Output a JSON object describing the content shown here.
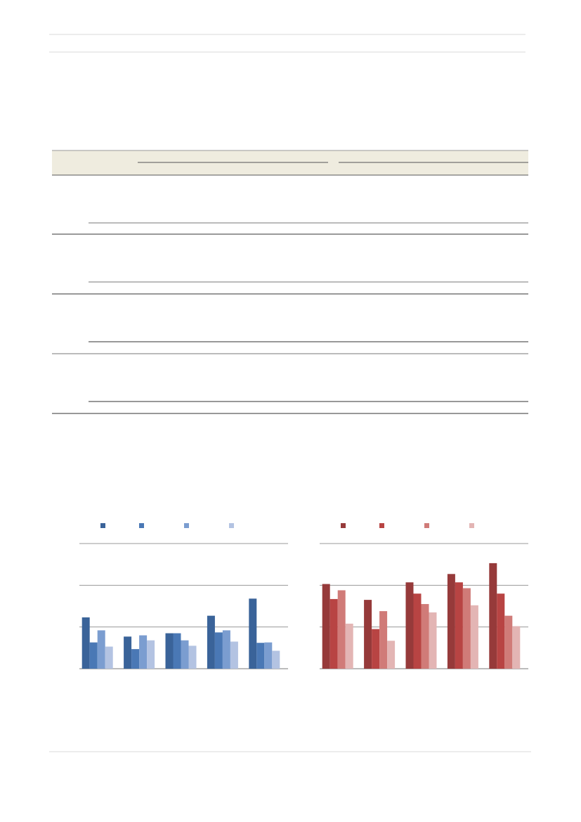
{
  "chart_data": [
    {
      "type": "bar",
      "categories": [
        null,
        null,
        null,
        null,
        null
      ],
      "ylim": [
        0,
        3
      ],
      "yticks": [
        0,
        1,
        2,
        3
      ],
      "grid": true,
      "series": [
        {
          "color": "#3a6399",
          "values": [
            1.23,
            0.77,
            0.85,
            1.27,
            1.68
          ]
        },
        {
          "color": "#4a78b5",
          "values": [
            0.63,
            0.47,
            0.85,
            0.87,
            0.62
          ]
        },
        {
          "color": "#7b9dd0",
          "values": [
            0.92,
            0.8,
            0.68,
            0.92,
            0.63
          ]
        },
        {
          "color": "#b3c3e2",
          "values": [
            0.53,
            0.68,
            0.55,
            0.65,
            0.43
          ]
        }
      ]
    },
    {
      "type": "bar",
      "categories": [
        null,
        null,
        null,
        null,
        null
      ],
      "ylim": [
        0,
        3
      ],
      "yticks": [
        0,
        1,
        2,
        3
      ],
      "grid": true,
      "series": [
        {
          "color": "#963a3a",
          "values": [
            2.03,
            1.65,
            2.07,
            2.27,
            2.53
          ]
        },
        {
          "color": "#b84443",
          "values": [
            1.67,
            0.95,
            1.8,
            2.07,
            1.8
          ]
        },
        {
          "color": "#d07b78",
          "values": [
            1.88,
            1.38,
            1.55,
            1.93,
            1.27
          ]
        },
        {
          "color": "#e3b5b4",
          "values": [
            1.08,
            0.67,
            1.35,
            1.52,
            1.02
          ]
        }
      ]
    }
  ]
}
